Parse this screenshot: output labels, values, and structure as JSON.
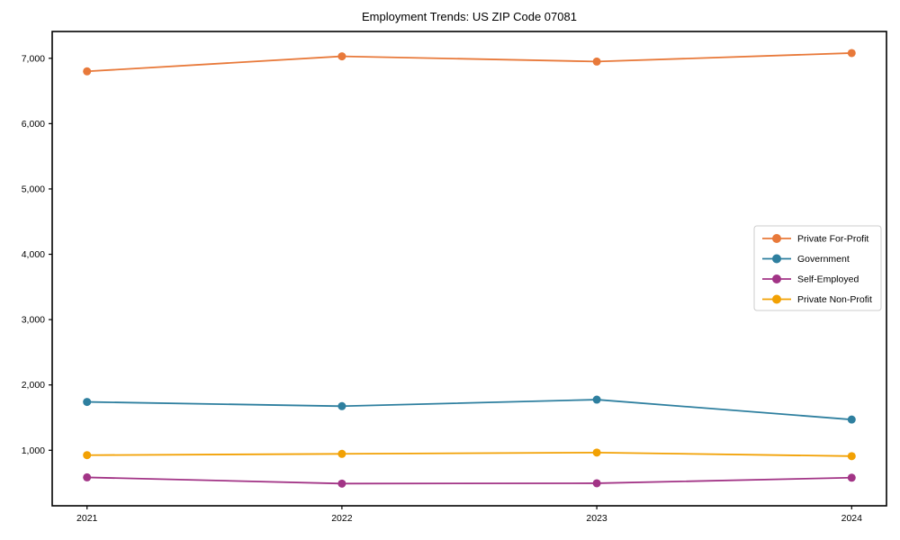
{
  "chart_data": {
    "type": "line",
    "title": "Employment Trends: US ZIP Code 07081",
    "xlabel": "",
    "ylabel": "",
    "categories": [
      "2021",
      "2022",
      "2023",
      "2024"
    ],
    "series": [
      {
        "name": "Private For-Profit",
        "color": "#E8793A",
        "values": [
          6800,
          7030,
          6950,
          7080
        ]
      },
      {
        "name": "Government",
        "color": "#2E7F9F",
        "values": [
          1740,
          1675,
          1775,
          1470
        ]
      },
      {
        "name": "Self-Employed",
        "color": "#A23486",
        "values": [
          585,
          490,
          495,
          580
        ]
      },
      {
        "name": "Private Non-Profit",
        "color": "#F2A104",
        "values": [
          925,
          945,
          965,
          910
        ]
      }
    ],
    "yticks": [
      {
        "value": 1000,
        "label": "1,000"
      },
      {
        "value": 2000,
        "label": "2,000"
      },
      {
        "value": 3000,
        "label": "3,000"
      },
      {
        "value": 4000,
        "label": "4,000"
      },
      {
        "value": 5000,
        "label": "5,000"
      },
      {
        "value": 6000,
        "label": "6,000"
      },
      {
        "value": 7000,
        "label": "7,000"
      }
    ],
    "ylim": [
      150,
      7410
    ],
    "grid": false,
    "legend_position": "center-right",
    "marker": "circle",
    "colors": {
      "axis": "#000000",
      "tick_label": "#000000",
      "legend_border": "#cccccc",
      "legend_background": "#ffffff"
    }
  }
}
